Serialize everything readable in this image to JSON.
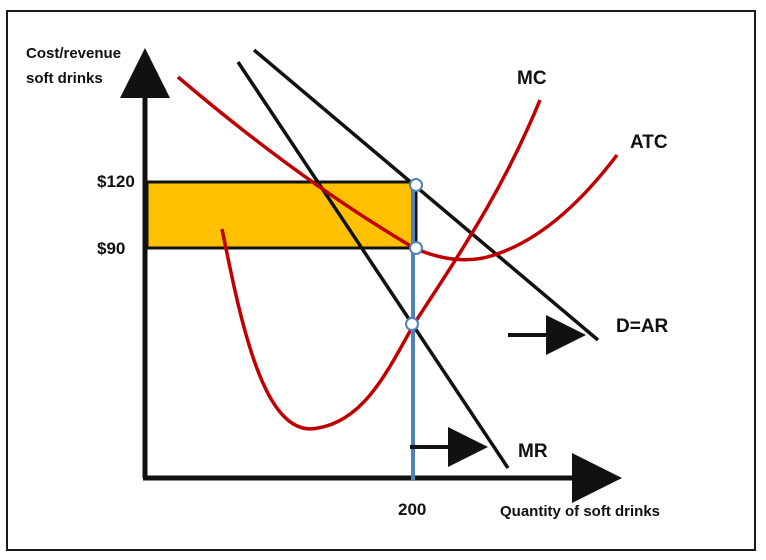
{
  "axes": {
    "y_label_line1": "Cost/revenue",
    "y_label_line2": "soft drinks",
    "x_label": "Quantity of soft drinks",
    "y_tick_high": "$120",
    "y_tick_low": "$90",
    "x_tick": "200"
  },
  "curves": {
    "mc": "MC",
    "atc": "ATC",
    "demand": "D=AR",
    "mr": "MR"
  },
  "colors": {
    "profit_area": "#FFC000",
    "cost_curves": "#C00000",
    "revenue_lines": "#111111",
    "quantity_line": "#4F81BD",
    "background": "#ffffff"
  }
}
